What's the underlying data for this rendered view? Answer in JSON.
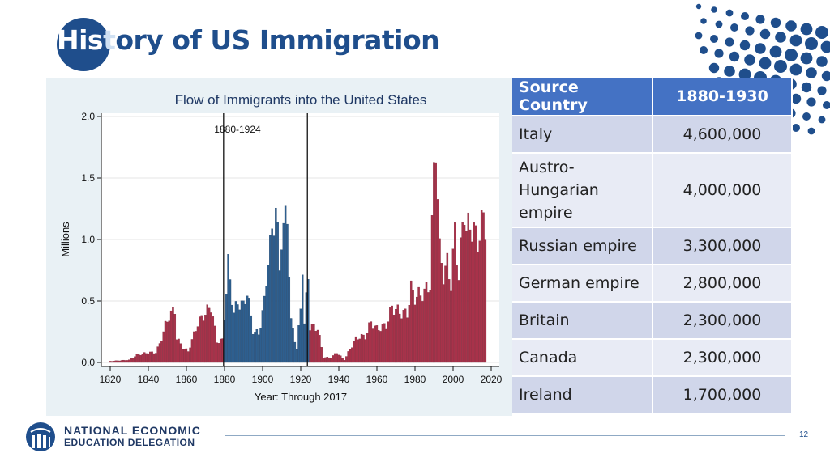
{
  "slide": {
    "title_overlap": "His",
    "title_overlap_cont": "t",
    "title_rest": "ory of US Immigration",
    "page_number": "12"
  },
  "footer": {
    "org_line1": "NATIONAL ECONOMIC",
    "org_line2": "EDUCATION DELEGATION",
    "logo_icon": "globe-icon"
  },
  "colors": {
    "brand": "#1f4e8c",
    "table_header": "#4472c4",
    "bar_red": "#a8324a",
    "bar_blue": "#2e5f8f"
  },
  "table": {
    "headers": [
      "Source Country",
      "1880-1930"
    ],
    "rows": [
      [
        "Italy",
        "4,600,000"
      ],
      [
        "Austro-Hungarian empire",
        "4,000,000"
      ],
      [
        "Russian empire",
        "3,300,000"
      ],
      [
        "German empire",
        "2,800,000"
      ],
      [
        "Britain",
        "2,300,000"
      ],
      [
        "Canada",
        "2,300,000"
      ],
      [
        "Ireland",
        "1,700,000"
      ]
    ]
  },
  "chart_data": {
    "type": "bar",
    "title": "Flow of Immigrants into the United States",
    "xlabel": "Year: Through 2017",
    "ylabel": "Millions",
    "ylim": [
      0,
      2.0
    ],
    "xlim": [
      1820,
      2020
    ],
    "yticks": [
      "0.0",
      "0.5",
      "1.0",
      "1.5",
      "2.0"
    ],
    "xticks": [
      "1820",
      "1840",
      "1860",
      "1880",
      "1900",
      "1920",
      "1940",
      "1960",
      "1980",
      "2000",
      "2020"
    ],
    "highlight": {
      "label": "1880-1924",
      "start": 1880,
      "end": 1924
    },
    "grid": true,
    "anchors": [
      [
        1820,
        0.01
      ],
      [
        1830,
        0.02
      ],
      [
        1834,
        0.06
      ],
      [
        1840,
        0.08
      ],
      [
        1844,
        0.08
      ],
      [
        1846,
        0.15
      ],
      [
        1849,
        0.3
      ],
      [
        1851,
        0.38
      ],
      [
        1854,
        0.43
      ],
      [
        1855,
        0.2
      ],
      [
        1858,
        0.12
      ],
      [
        1861,
        0.09
      ],
      [
        1863,
        0.18
      ],
      [
        1866,
        0.32
      ],
      [
        1869,
        0.38
      ],
      [
        1873,
        0.46
      ],
      [
        1876,
        0.17
      ],
      [
        1879,
        0.18
      ],
      [
        1882,
        0.79
      ],
      [
        1885,
        0.4
      ],
      [
        1887,
        0.49
      ],
      [
        1890,
        0.46
      ],
      [
        1892,
        0.58
      ],
      [
        1895,
        0.26
      ],
      [
        1898,
        0.23
      ],
      [
        1901,
        0.49
      ],
      [
        1903,
        0.86
      ],
      [
        1905,
        1.03
      ],
      [
        1907,
        1.29
      ],
      [
        1909,
        0.75
      ],
      [
        1910,
        1.04
      ],
      [
        1913,
        1.2
      ],
      [
        1915,
        0.33
      ],
      [
        1918,
        0.11
      ],
      [
        1920,
        0.43
      ],
      [
        1921,
        0.81
      ],
      [
        1922,
        0.31
      ],
      [
        1924,
        0.71
      ],
      [
        1925,
        0.29
      ],
      [
        1929,
        0.28
      ],
      [
        1932,
        0.04
      ],
      [
        1936,
        0.04
      ],
      [
        1939,
        0.08
      ],
      [
        1941,
        0.05
      ],
      [
        1943,
        0.02
      ],
      [
        1946,
        0.11
      ],
      [
        1949,
        0.19
      ],
      [
        1951,
        0.21
      ],
      [
        1954,
        0.21
      ],
      [
        1957,
        0.33
      ],
      [
        1960,
        0.27
      ],
      [
        1965,
        0.3
      ],
      [
        1968,
        0.45
      ],
      [
        1973,
        0.4
      ],
      [
        1976,
        0.4
      ],
      [
        1978,
        0.6
      ],
      [
        1980,
        0.53
      ],
      [
        1985,
        0.57
      ],
      [
        1988,
        0.64
      ],
      [
        1989,
        1.09
      ],
      [
        1990,
        1.54
      ],
      [
        1991,
        1.83
      ],
      [
        1993,
        0.9
      ],
      [
        1995,
        0.72
      ],
      [
        1997,
        0.8
      ],
      [
        1999,
        0.64
      ],
      [
        2001,
        1.06
      ],
      [
        2003,
        0.7
      ],
      [
        2005,
        1.12
      ],
      [
        2006,
        1.27
      ],
      [
        2007,
        1.05
      ],
      [
        2009,
        1.13
      ],
      [
        2011,
        1.06
      ],
      [
        2013,
        0.99
      ],
      [
        2016,
        1.18
      ],
      [
        2017,
        1.13
      ]
    ]
  }
}
